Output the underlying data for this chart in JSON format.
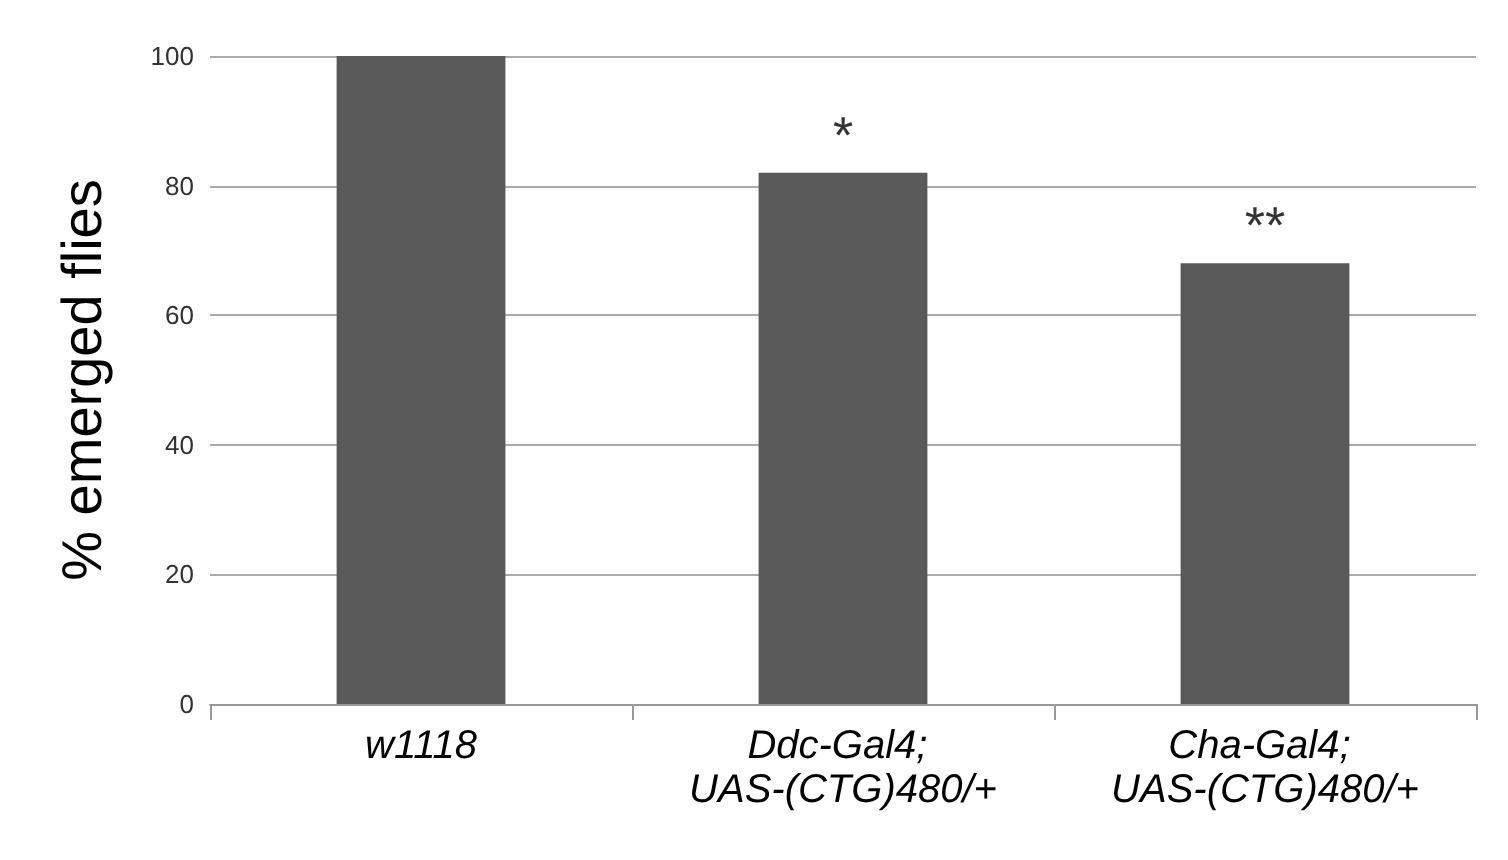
{
  "chart_data": {
    "type": "bar",
    "ylabel": "% emerged flies",
    "categories": [
      "w1118",
      "Ddc-Gal4; UAS-(CTG)480/+",
      "Cha-Gal4; UAS-(CTG)480/+"
    ],
    "values": [
      100,
      82,
      68
    ],
    "color": "#595959",
    "ylim": [
      0,
      100
    ],
    "yticks": [
      0,
      20,
      40,
      60,
      80,
      100
    ],
    "grid": "y",
    "annotations": [
      {
        "text": "*",
        "x": "Ddc-Gal4; UAS-(CTG)480/+",
        "y": 82
      },
      {
        "text": "**",
        "x": "Cha-Gal4; UAS-(CTG)480/+",
        "y": 68
      }
    ]
  }
}
